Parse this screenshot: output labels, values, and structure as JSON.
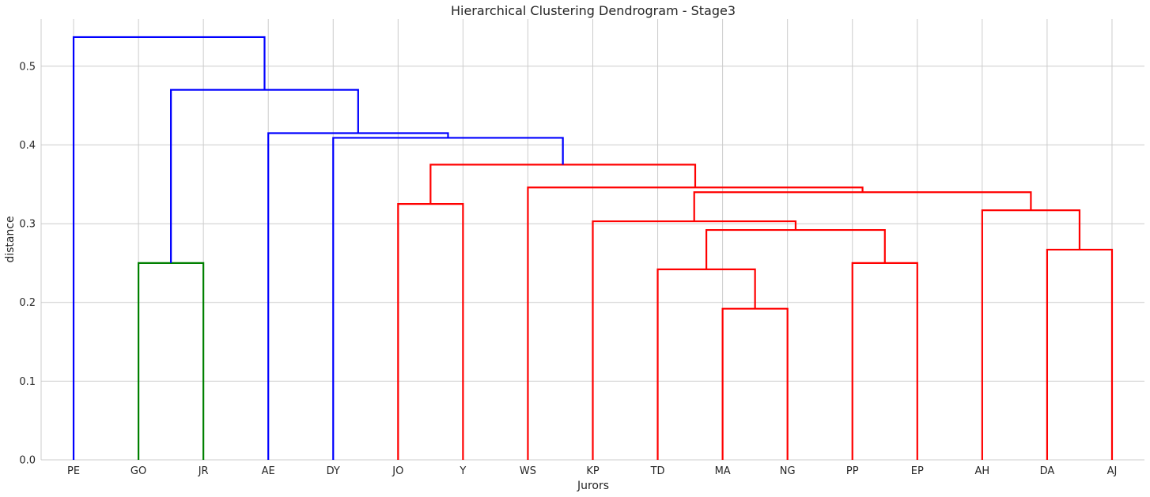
{
  "chart_data": {
    "type": "dendrogram",
    "title": "Hierarchical Clustering Dendrogram - Stage3",
    "xlabel": "Jurors",
    "ylabel": "distance",
    "ylim": [
      0,
      0.56
    ],
    "yticks": [
      "0.0",
      "0.1",
      "0.2",
      "0.3",
      "0.4",
      "0.5"
    ],
    "grid": true,
    "leaves": [
      "PE",
      "GO",
      "JR",
      "AE",
      "DY",
      "JO",
      "Y",
      "WS",
      "KP",
      "TD",
      "MA",
      "NG",
      "PP",
      "EP",
      "AH",
      "DA",
      "AJ"
    ],
    "colors": {
      "green": "#008000",
      "red": "#ff0000",
      "blue": "#0000ff",
      "grid": "#cccccc"
    },
    "merges": [
      {
        "left": "leaf:GO",
        "right": "leaf:JR",
        "height": 0.25,
        "color": "green"
      },
      {
        "left": "leaf:MA",
        "right": "leaf:NG",
        "height": 0.192,
        "color": "red"
      },
      {
        "left": "leaf:TD",
        "right": "m1",
        "height": 0.242,
        "color": "red"
      },
      {
        "left": "leaf:PP",
        "right": "leaf:EP",
        "height": 0.25,
        "color": "red"
      },
      {
        "left": "m2",
        "right": "m3",
        "height": 0.292,
        "color": "red"
      },
      {
        "left": "leaf:KP",
        "right": "m4",
        "height": 0.303,
        "color": "red"
      },
      {
        "left": "leaf:DA",
        "right": "leaf:AJ",
        "height": 0.267,
        "color": "red"
      },
      {
        "left": "leaf:AH",
        "right": "m6",
        "height": 0.317,
        "color": "red"
      },
      {
        "left": "m5",
        "right": "m7",
        "height": 0.34,
        "color": "red"
      },
      {
        "left": "leaf:WS",
        "right": "m8",
        "height": 0.346,
        "color": "red"
      },
      {
        "left": "leaf:JO",
        "right": "leaf:Y",
        "height": 0.325,
        "color": "red"
      },
      {
        "left": "m10",
        "right": "m9",
        "height": 0.375,
        "color": "red"
      },
      {
        "left": "leaf:DY",
        "right": "m11",
        "height": 0.409,
        "color": "blue"
      },
      {
        "left": "leaf:AE",
        "right": "m12",
        "height": 0.415,
        "color": "blue"
      },
      {
        "left": "m0",
        "right": "m13",
        "height": 0.47,
        "color": "blue"
      },
      {
        "left": "leaf:PE",
        "right": "m14",
        "height": 0.537,
        "color": "blue"
      }
    ]
  }
}
